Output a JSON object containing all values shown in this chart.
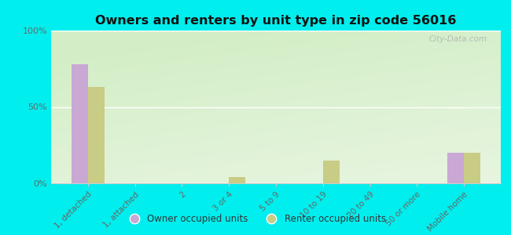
{
  "title": "Owners and renters by unit type in zip code 56016",
  "categories": [
    "1, detached",
    "1, attached",
    "2",
    "3 or 4",
    "5 to 9",
    "10 to 19",
    "20 to 49",
    "50 or more",
    "Mobile home"
  ],
  "owner_values": [
    78,
    0,
    0,
    0,
    0,
    0,
    0,
    0,
    20
  ],
  "renter_values": [
    63,
    0,
    0,
    4,
    0,
    15,
    0,
    0,
    20
  ],
  "owner_color": "#c9a8d4",
  "renter_color": "#c8cc84",
  "background_color": "#00eeee",
  "ylim": [
    0,
    100
  ],
  "yticks": [
    0,
    50,
    100
  ],
  "ytick_labels": [
    "0%",
    "50%",
    "100%"
  ],
  "watermark": "City-Data.com",
  "legend_owner": "Owner occupied units",
  "legend_renter": "Renter occupied units",
  "bar_width": 0.35,
  "plot_bg_color": "#e8f5e0",
  "grid_color": "#d8ead8",
  "spine_color": "#cccccc",
  "tick_label_color": "#666666",
  "title_color": "#111111"
}
